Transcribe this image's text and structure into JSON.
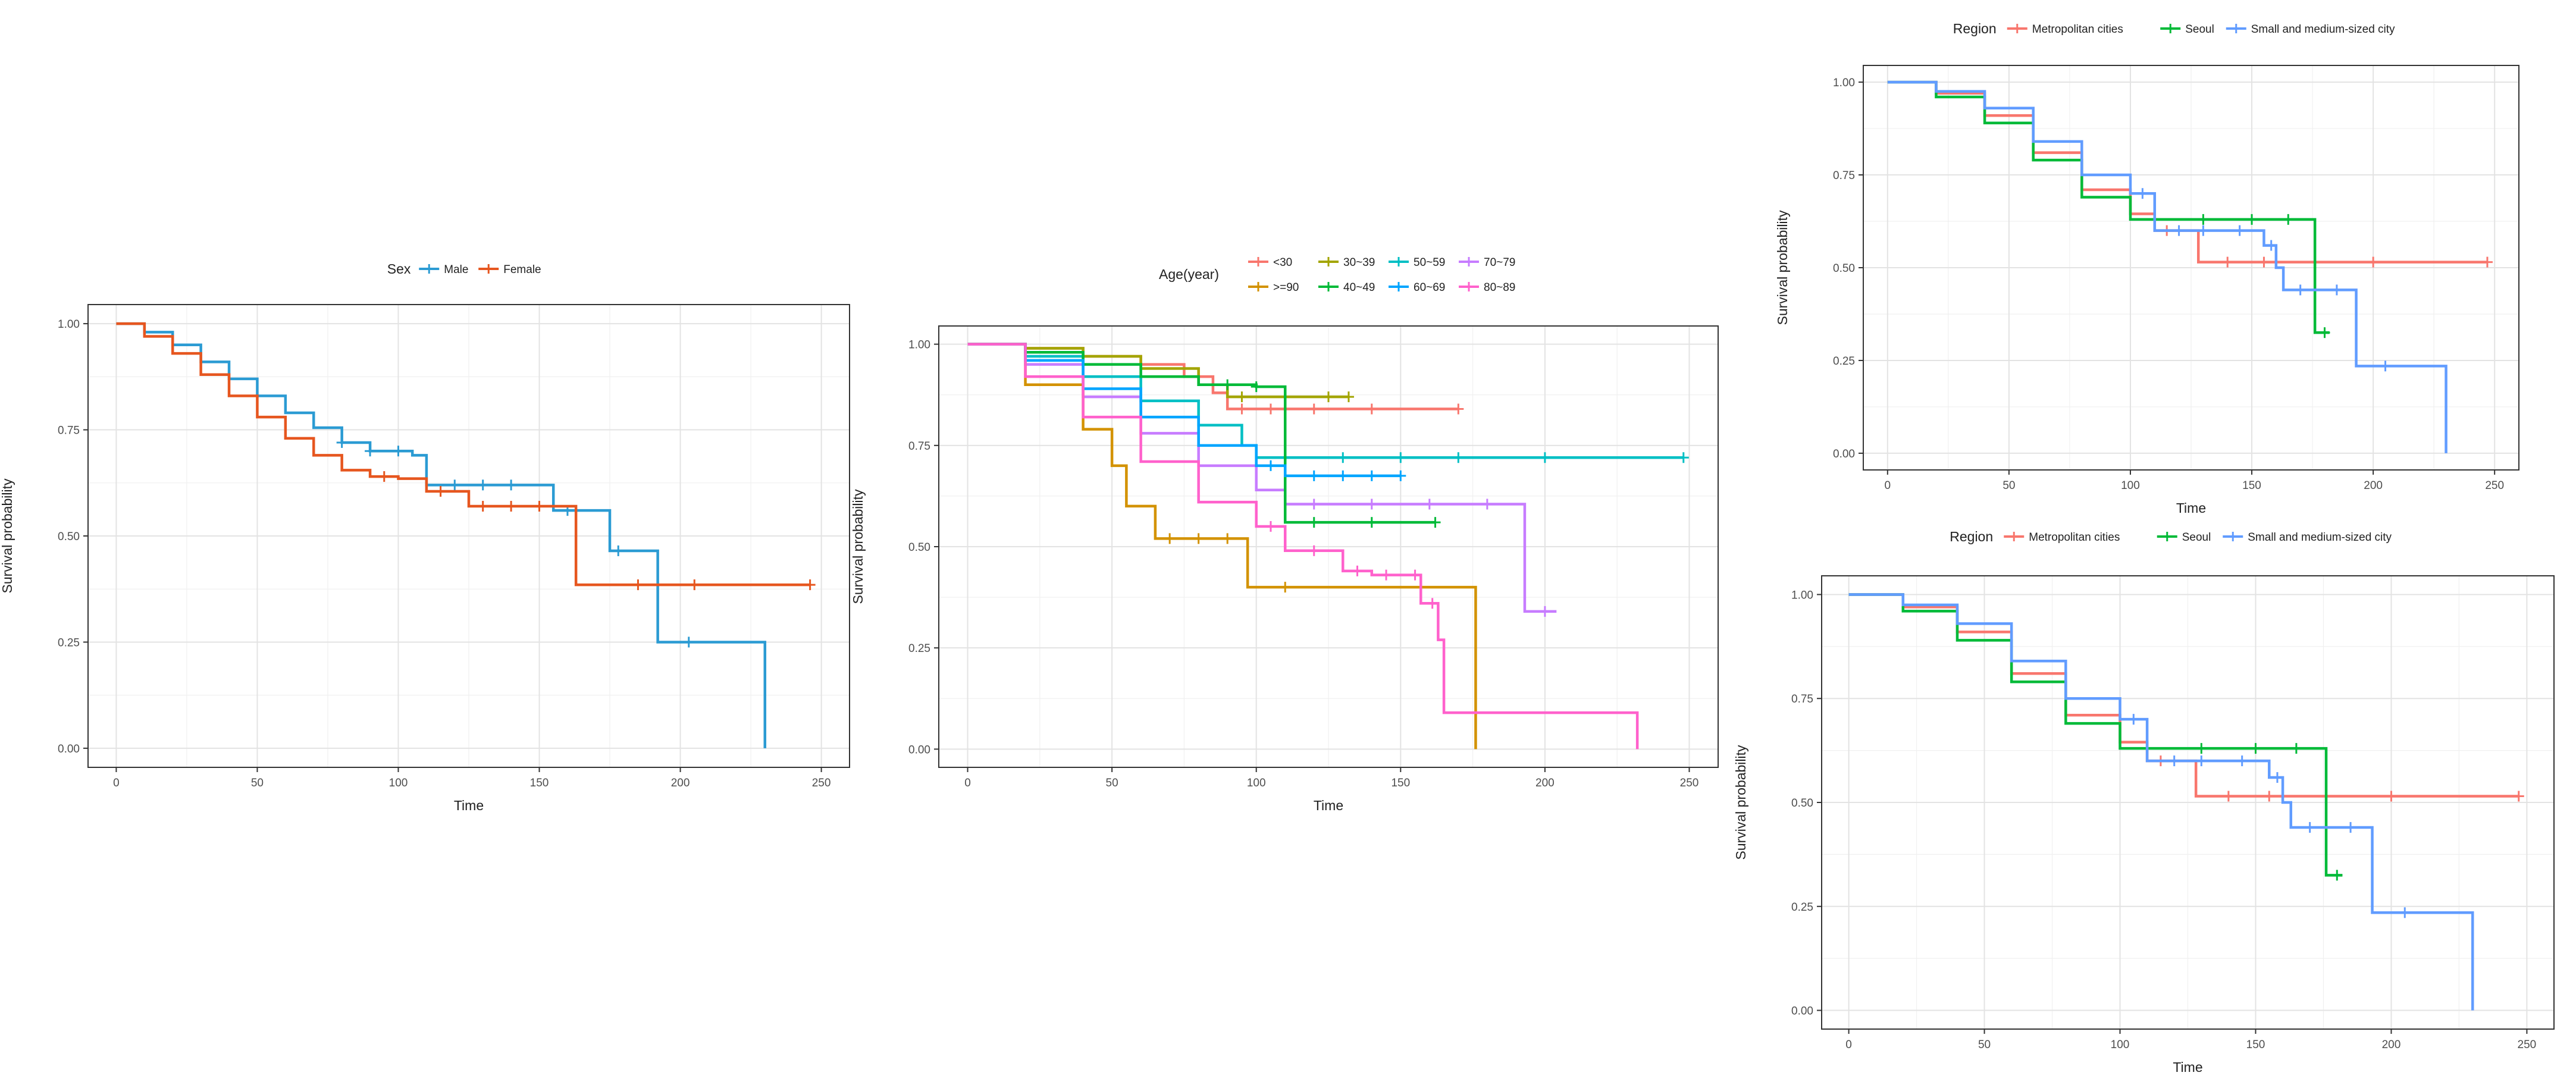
{
  "chart_data": [
    {
      "type": "line",
      "subtype": "kaplan-meier",
      "xlabel": "Time",
      "ylabel": "Survival probability",
      "xlim": [
        0,
        250
      ],
      "ylim": [
        0,
        1
      ],
      "xticks": [
        0,
        50,
        100,
        150,
        200,
        250
      ],
      "yticks": [
        0,
        0.25,
        0.5,
        0.75,
        1
      ],
      "ytick_labels": [
        "0.00",
        "0.25",
        "0.50",
        "0.75",
        "1.00"
      ],
      "grid": true,
      "legend": {
        "title": "Sex",
        "position": "top"
      },
      "series": [
        {
          "name": "Male",
          "color": "#2b9bd3",
          "x": [
            0,
            10,
            20,
            30,
            40,
            50,
            60,
            70,
            80,
            90,
            100,
            105,
            110,
            150,
            155,
            175,
            180,
            192,
            230,
            230
          ],
          "y": [
            1.0,
            0.98,
            0.95,
            0.91,
            0.87,
            0.83,
            0.79,
            0.755,
            0.72,
            0.7,
            0.7,
            0.69,
            0.62,
            0.62,
            0.56,
            0.465,
            0.465,
            0.25,
            0.25,
            0.0
          ],
          "censor_x": [
            80,
            90,
            100,
            120,
            130,
            140,
            160,
            178,
            203
          ]
        },
        {
          "name": "Female",
          "color": "#e6561f",
          "x": [
            0,
            10,
            20,
            30,
            40,
            50,
            60,
            70,
            80,
            90,
            100,
            110,
            125,
            160,
            163,
            246
          ],
          "y": [
            1.0,
            0.97,
            0.93,
            0.88,
            0.83,
            0.78,
            0.73,
            0.69,
            0.655,
            0.64,
            0.635,
            0.605,
            0.57,
            0.57,
            0.385,
            0.385
          ],
          "censor_x": [
            95,
            115,
            130,
            140,
            150,
            185,
            205,
            246
          ]
        }
      ]
    },
    {
      "type": "line",
      "subtype": "kaplan-meier",
      "xlabel": "Time",
      "ylabel": "Survival probability",
      "xlim": [
        0,
        250
      ],
      "ylim": [
        0,
        1
      ],
      "xticks": [
        0,
        50,
        100,
        150,
        200,
        250
      ],
      "yticks": [
        0,
        0.25,
        0.5,
        0.75,
        1
      ],
      "ytick_labels": [
        "0.00",
        "0.25",
        "0.50",
        "0.75",
        "1.00"
      ],
      "grid": true,
      "legend": {
        "title": "Age(year)",
        "position": "top"
      },
      "series": [
        {
          "name": "<30",
          "color": "#f8766d",
          "x": [
            0,
            20,
            40,
            60,
            75,
            85,
            90,
            170
          ],
          "y": [
            1.0,
            0.99,
            0.97,
            0.95,
            0.92,
            0.88,
            0.84,
            0.84
          ],
          "censor_x": [
            95,
            105,
            120,
            140,
            170
          ]
        },
        {
          "name": "30~39",
          "color": "#a3a500",
          "x": [
            0,
            20,
            40,
            60,
            80,
            90,
            132
          ],
          "y": [
            1.0,
            0.99,
            0.97,
            0.94,
            0.9,
            0.87,
            0.87
          ],
          "censor_x": [
            95,
            110,
            125,
            132
          ]
        },
        {
          "name": "50~59",
          "color": "#00bfc4",
          "x": [
            0,
            20,
            40,
            60,
            80,
            95,
            100,
            248
          ],
          "y": [
            1.0,
            0.97,
            0.92,
            0.86,
            0.8,
            0.75,
            0.72,
            0.72
          ],
          "censor_x": [
            110,
            130,
            150,
            170,
            200,
            248
          ]
        },
        {
          "name": "70~79",
          "color": "#c77cff",
          "x": [
            0,
            20,
            40,
            60,
            80,
            100,
            110,
            192,
            193,
            204
          ],
          "y": [
            1.0,
            0.95,
            0.87,
            0.78,
            0.7,
            0.64,
            0.605,
            0.605,
            0.34,
            0.34
          ],
          "censor_x": [
            120,
            140,
            160,
            180,
            200
          ]
        },
        {
          "name": ">=90",
          "color": "#d39200",
          "x": [
            0,
            20,
            40,
            50,
            55,
            65,
            95,
            97,
            176,
            176
          ],
          "y": [
            1.0,
            0.9,
            0.79,
            0.7,
            0.6,
            0.52,
            0.52,
            0.4,
            0.4,
            0.0
          ],
          "censor_x": [
            70,
            80,
            90,
            110
          ]
        },
        {
          "name": "40~49",
          "color": "#00ba38",
          "x": [
            0,
            20,
            40,
            60,
            80,
            100,
            108,
            110,
            162
          ],
          "y": [
            1.0,
            0.98,
            0.95,
            0.92,
            0.9,
            0.895,
            0.895,
            0.56,
            0.56
          ],
          "censor_x": [
            90,
            100,
            120,
            140,
            162
          ]
        },
        {
          "name": "60~69",
          "color": "#00a5ff",
          "x": [
            0,
            20,
            40,
            60,
            80,
            100,
            110,
            150
          ],
          "y": [
            1.0,
            0.96,
            0.89,
            0.82,
            0.75,
            0.7,
            0.675,
            0.675
          ],
          "censor_x": [
            105,
            120,
            130,
            140,
            150
          ]
        },
        {
          "name": "80~89",
          "color": "#ff61cc",
          "x": [
            0,
            20,
            40,
            60,
            80,
            100,
            110,
            130,
            140,
            157,
            163,
            165,
            232,
            232
          ],
          "y": [
            1.0,
            0.92,
            0.82,
            0.71,
            0.61,
            0.55,
            0.49,
            0.44,
            0.43,
            0.36,
            0.27,
            0.09,
            0.09,
            0.0
          ],
          "censor_x": [
            105,
            120,
            135,
            145,
            155,
            161
          ]
        }
      ]
    },
    {
      "type": "line",
      "subtype": "kaplan-meier",
      "xlabel": "Time",
      "ylabel": "Survival probability",
      "xlim": [
        0,
        250
      ],
      "ylim": [
        0,
        1
      ],
      "xticks": [
        0,
        50,
        100,
        150,
        200,
        250
      ],
      "yticks": [
        0,
        0.25,
        0.5,
        0.75,
        1
      ],
      "ytick_labels": [
        "0.00",
        "0.25",
        "0.50",
        "0.75",
        "1.00"
      ],
      "grid": true,
      "legend": {
        "title": "Region",
        "position": "top"
      },
      "series": [
        {
          "name": "Metropolitan cities",
          "color": "#f8766d",
          "x": [
            0,
            20,
            40,
            60,
            80,
            100,
            110,
            127,
            128,
            247
          ],
          "y": [
            1.0,
            0.97,
            0.91,
            0.81,
            0.71,
            0.645,
            0.6,
            0.6,
            0.515,
            0.515
          ],
          "censor_x": [
            115,
            140,
            155,
            200,
            247
          ]
        },
        {
          "name": "Seoul",
          "color": "#00ba38",
          "x": [
            0,
            20,
            40,
            60,
            80,
            100,
            175,
            176,
            182
          ],
          "y": [
            1.0,
            0.96,
            0.89,
            0.79,
            0.69,
            0.63,
            0.63,
            0.325,
            0.325
          ],
          "censor_x": [
            110,
            130,
            150,
            165,
            180
          ]
        },
        {
          "name": "Small and medium-sized city",
          "color": "#619cff",
          "x": [
            0,
            20,
            40,
            60,
            80,
            100,
            110,
            140,
            155,
            160,
            163,
            192,
            193,
            230,
            230
          ],
          "y": [
            1.0,
            0.975,
            0.93,
            0.84,
            0.75,
            0.7,
            0.6,
            0.6,
            0.56,
            0.5,
            0.44,
            0.44,
            0.235,
            0.235,
            0.0
          ],
          "censor_x": [
            105,
            120,
            130,
            145,
            158,
            170,
            185,
            205
          ]
        }
      ]
    },
    {
      "type": "line",
      "subtype": "kaplan-meier",
      "xlabel": "Time",
      "ylabel": "Survival probability",
      "xlim": [
        0,
        250
      ],
      "ylim": [
        0,
        1
      ],
      "xticks": [
        0,
        50,
        100,
        150,
        200,
        250
      ],
      "yticks": [
        0,
        0.25,
        0.5,
        0.75,
        1
      ],
      "ytick_labels": [
        "0.00",
        "0.25",
        "0.50",
        "0.75",
        "1.00"
      ],
      "grid": true,
      "legend": {
        "title": "Region",
        "position": "top"
      },
      "series": [
        {
          "name": "Metropolitan cities",
          "color": "#f8766d",
          "x": [
            0,
            20,
            40,
            60,
            80,
            100,
            110,
            127,
            128,
            247
          ],
          "y": [
            1.0,
            0.97,
            0.91,
            0.81,
            0.71,
            0.645,
            0.6,
            0.6,
            0.515,
            0.515
          ],
          "censor_x": [
            115,
            140,
            155,
            200,
            247
          ]
        },
        {
          "name": "Seoul",
          "color": "#00ba38",
          "x": [
            0,
            20,
            40,
            60,
            80,
            100,
            175,
            176,
            182
          ],
          "y": [
            1.0,
            0.96,
            0.89,
            0.79,
            0.69,
            0.63,
            0.63,
            0.325,
            0.325
          ],
          "censor_x": [
            110,
            130,
            150,
            165,
            180
          ]
        },
        {
          "name": "Small and medium-sized city",
          "color": "#619cff",
          "x": [
            0,
            20,
            40,
            60,
            80,
            100,
            110,
            140,
            155,
            160,
            163,
            192,
            193,
            230,
            230
          ],
          "y": [
            1.0,
            0.975,
            0.93,
            0.84,
            0.75,
            0.7,
            0.6,
            0.6,
            0.56,
            0.5,
            0.44,
            0.44,
            0.235,
            0.235,
            0.0
          ],
          "censor_x": [
            105,
            120,
            130,
            145,
            158,
            170,
            185,
            205
          ]
        }
      ]
    }
  ]
}
